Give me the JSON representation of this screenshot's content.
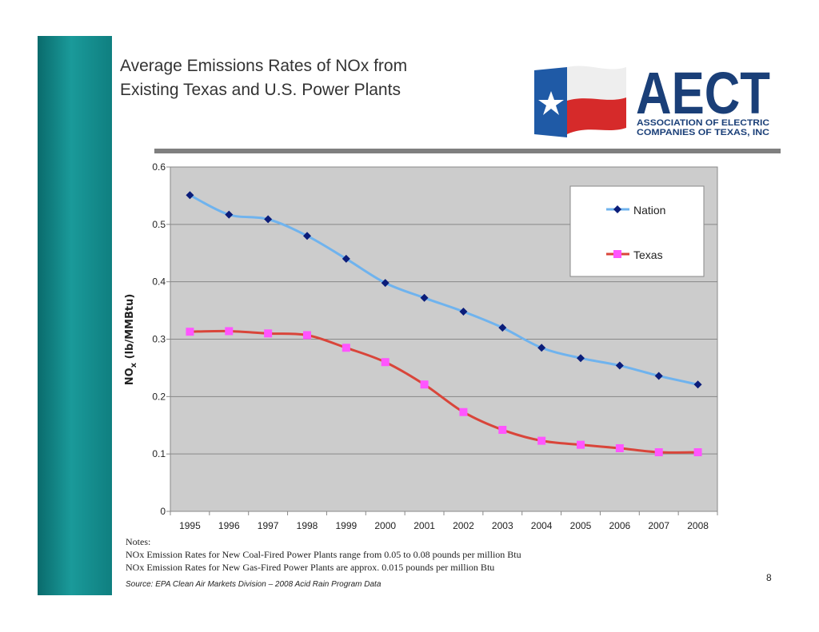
{
  "slide": {
    "title_line1": "Average Emissions Rates of NOx from",
    "title_line2": "Existing Texas and U.S. Power Plants",
    "page_number": "8"
  },
  "logo": {
    "brand": "AECT",
    "line1": "ASSOCIATION OF ELECTRIC",
    "line2": "COMPANIES OF TEXAS, INC",
    "colors": {
      "blue": "#1f5aa6",
      "red": "#d62a2a",
      "navy": "#1a3f78"
    }
  },
  "notes": {
    "heading": "Notes:",
    "line1": "NOx Emission Rates for New Coal-Fired Power Plants range from 0.05 to 0.08 pounds per million Btu",
    "line2": "NOx Emission Rates for New Gas-Fired Power Plants are approx. 0.015 pounds per million Btu",
    "source": "Source: EPA Clean Air Markets Division – 2008 Acid Rain Program Data"
  },
  "chart_data": {
    "type": "line",
    "ylabel": "NOx (lb/MMBtu)",
    "xlabel": "",
    "ylim": [
      0,
      0.6
    ],
    "yticks": [
      "0",
      "0.1",
      "0.2",
      "0.3",
      "0.4",
      "0.5",
      "0.6"
    ],
    "grid": true,
    "legend_position": "top-right",
    "categories": [
      "1995",
      "1996",
      "1997",
      "1998",
      "1999",
      "2000",
      "2001",
      "2002",
      "2003",
      "2004",
      "2005",
      "2006",
      "2007",
      "2008"
    ],
    "series": [
      {
        "name": "Nation",
        "line_color": "#6fb3ee",
        "marker_color": "#0b1d7a",
        "marker": "diamond",
        "values": [
          0.551,
          0.517,
          0.509,
          0.48,
          0.44,
          0.398,
          0.372,
          0.348,
          0.32,
          0.285,
          0.267,
          0.254,
          0.236,
          0.221
        ]
      },
      {
        "name": "Texas",
        "line_color": "#d9453a",
        "marker_color": "#ff55ff",
        "marker": "square",
        "values": [
          0.313,
          0.314,
          0.31,
          0.307,
          0.285,
          0.26,
          0.221,
          0.173,
          0.142,
          0.123,
          0.116,
          0.11,
          0.103,
          0.103
        ]
      }
    ]
  }
}
